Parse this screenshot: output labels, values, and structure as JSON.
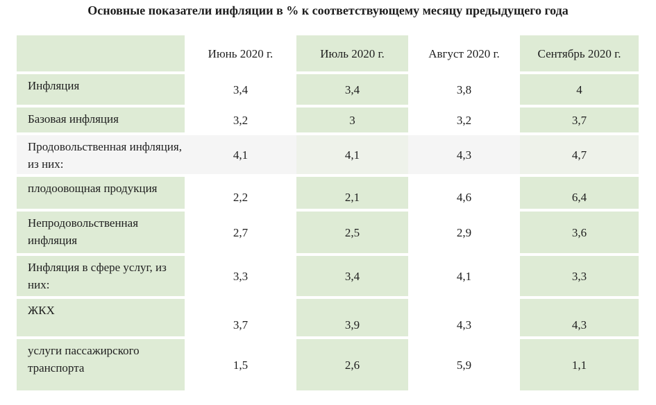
{
  "title": "Основные показатели инфляции в % к соответствующему месяцу предыдущего года",
  "columns": [
    "",
    "Июнь 2020 г.",
    "Июль 2020 г.",
    "Август 2020 г.",
    "Сентябрь 2020 г."
  ],
  "rows": [
    {
      "label": "Инфляция",
      "values": [
        "3,4",
        "3,4",
        "3,8",
        "4"
      ]
    },
    {
      "label": "Базовая инфляция",
      "values": [
        "3,2",
        "3",
        "3,2",
        "3,7"
      ]
    },
    {
      "label": "Продовольственная инфляция, из них:",
      "values": [
        "4,1",
        "4,1",
        "4,3",
        "4,7"
      ]
    },
    {
      "label": "плодоовощная продукция",
      "values": [
        "2,2",
        "2,1",
        "4,6",
        "6,4"
      ]
    },
    {
      "label": "Непродовольственная инфляция",
      "values": [
        "2,7",
        "2,5",
        "2,9",
        "3,6"
      ]
    },
    {
      "label": "Инфляция в сфере услуг, из них:",
      "values": [
        "3,3",
        "3,4",
        "4,1",
        "3,3"
      ]
    },
    {
      "label": "ЖКХ",
      "values": [
        "3,7",
        "3,9",
        "4,3",
        "4,3"
      ]
    },
    {
      "label": "услуги пассажирского транспорта",
      "values": [
        "1,5",
        "2,6",
        "5,9",
        "1,1"
      ]
    }
  ],
  "colors": {
    "green_fill": "#deebd5",
    "text": "#1e1e1e"
  }
}
